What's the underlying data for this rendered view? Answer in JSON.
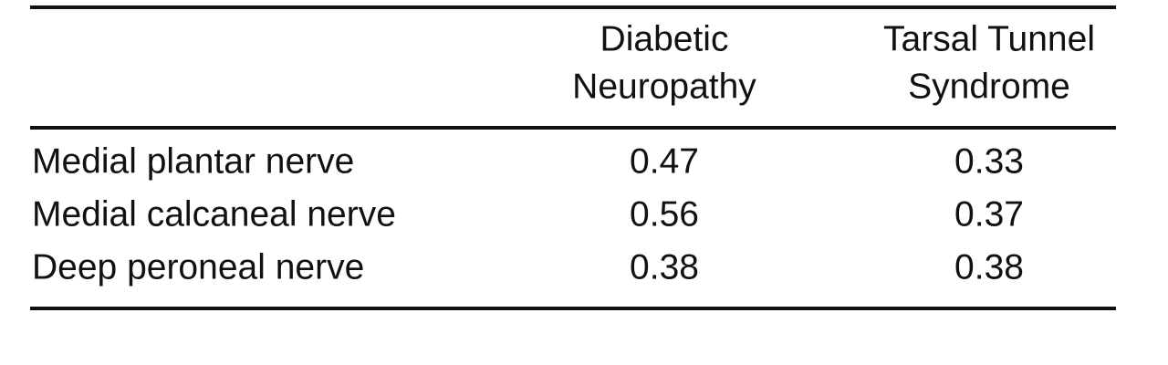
{
  "table": {
    "columns": [
      [
        "Diabetic",
        "Neuropathy"
      ],
      [
        "Tarsal Tunnel",
        "Syndrome"
      ]
    ],
    "rows": [
      [
        "Medial plantar nerve",
        0.47,
        0.33
      ],
      [
        "Medial calcaneal nerve",
        0.56,
        0.37
      ],
      [
        "Deep peroneal nerve",
        0.38,
        0.38
      ]
    ]
  }
}
